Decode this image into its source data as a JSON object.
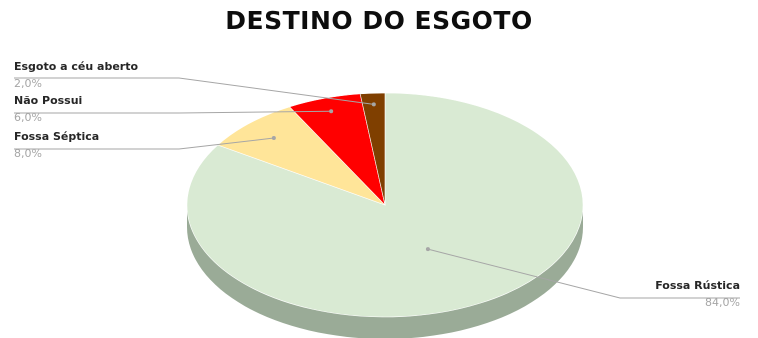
{
  "chart_data": {
    "type": "pie",
    "title": "DESTINO DO ESGOTO",
    "slices": [
      {
        "label": "Fossa Rústica",
        "value": 84.0,
        "value_label": "84,0%",
        "color": "#d9ead3"
      },
      {
        "label": "Fossa Séptica",
        "value": 8.0,
        "value_label": "8,0%",
        "color": "#ffe599"
      },
      {
        "label": "Não Possui",
        "value": 6.0,
        "value_label": "6,0%",
        "color": "#ff0000"
      },
      {
        "label": "Esgoto a céu aberto",
        "value": 2.0,
        "value_label": "2,0%",
        "color": "#7f3f00"
      }
    ],
    "style": "3d",
    "legend": "none"
  }
}
